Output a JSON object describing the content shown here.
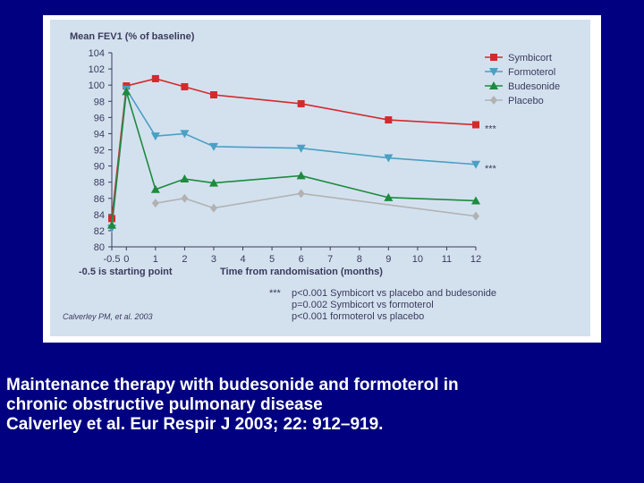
{
  "colors": {
    "background": "#000080",
    "panel": "#ffffff",
    "plot_area": "#d3e1ef",
    "text": "#3a3a5c",
    "caption_text": "#ffffff"
  },
  "caption": {
    "line1": "Maintenance therapy with budesonide and formoterol in",
    "line2": "chronic obstructive pulmonary disease",
    "line3": "Calverley et al. Eur Respir J 2003; 22: 912–919."
  },
  "chart_data": {
    "type": "line",
    "title": "",
    "ylabel": "Mean FEV1 (% of baseline)",
    "xlabel": "Time from randomisation (months)",
    "x_note": "-0.5 is starting point",
    "xlim": [
      -0.5,
      12
    ],
    "ylim": [
      80,
      104
    ],
    "x_ticks": [
      {
        "value": -0.5,
        "label": "-0.5"
      },
      {
        "value": 0,
        "label": "0"
      },
      {
        "value": 1,
        "label": "1"
      },
      {
        "value": 2,
        "label": "2"
      },
      {
        "value": 3,
        "label": "3"
      },
      {
        "value": 4,
        "label": "4"
      },
      {
        "value": 5,
        "label": "5"
      },
      {
        "value": 6,
        "label": "6"
      },
      {
        "value": 7,
        "label": "7"
      },
      {
        "value": 8,
        "label": "8"
      },
      {
        "value": 9,
        "label": "9"
      },
      {
        "value": 10,
        "label": "10"
      },
      {
        "value": 11,
        "label": "11"
      },
      {
        "value": 12,
        "label": "12"
      }
    ],
    "y_ticks": [
      80,
      82,
      84,
      86,
      88,
      90,
      92,
      94,
      96,
      98,
      100,
      102,
      104
    ],
    "grid": false,
    "legend_position": "top-right",
    "x": [
      -0.5,
      0,
      1,
      2,
      3,
      6,
      9,
      12
    ],
    "series": [
      {
        "name": "Symbicort",
        "color": "#d42a2a",
        "marker": "square",
        "values": [
          83.5,
          99.9,
          100.8,
          99.8,
          98.8,
          97.7,
          95.7,
          95.1
        ],
        "end_annotation": "***"
      },
      {
        "name": "Formoterol",
        "color": "#4a9fc4",
        "marker": "triangle-down",
        "values": [
          82.3,
          99.5,
          93.7,
          94.0,
          92.4,
          92.2,
          91.0,
          90.2
        ],
        "end_annotation": "***"
      },
      {
        "name": "Budesonide",
        "color": "#1e8a3e",
        "marker": "triangle-up",
        "values": [
          82.7,
          99.2,
          87.1,
          88.4,
          87.9,
          88.8,
          86.1,
          85.7
        ]
      },
      {
        "name": "Placebo",
        "color": "#b2b2b2",
        "marker": "diamond",
        "values": [
          null,
          null,
          85.4,
          86.0,
          84.8,
          86.6,
          null,
          83.8
        ]
      }
    ],
    "annotations": [
      {
        "prefix": "***",
        "text": "p<0.001 Symbicort vs placebo and budesonide"
      },
      {
        "prefix": "",
        "text": "p=0.002 Symbicort vs formoterol"
      },
      {
        "prefix": "",
        "text": "p<0.001 formoterol vs placebo"
      }
    ],
    "source": "Calverley PM, et al. 2003"
  }
}
